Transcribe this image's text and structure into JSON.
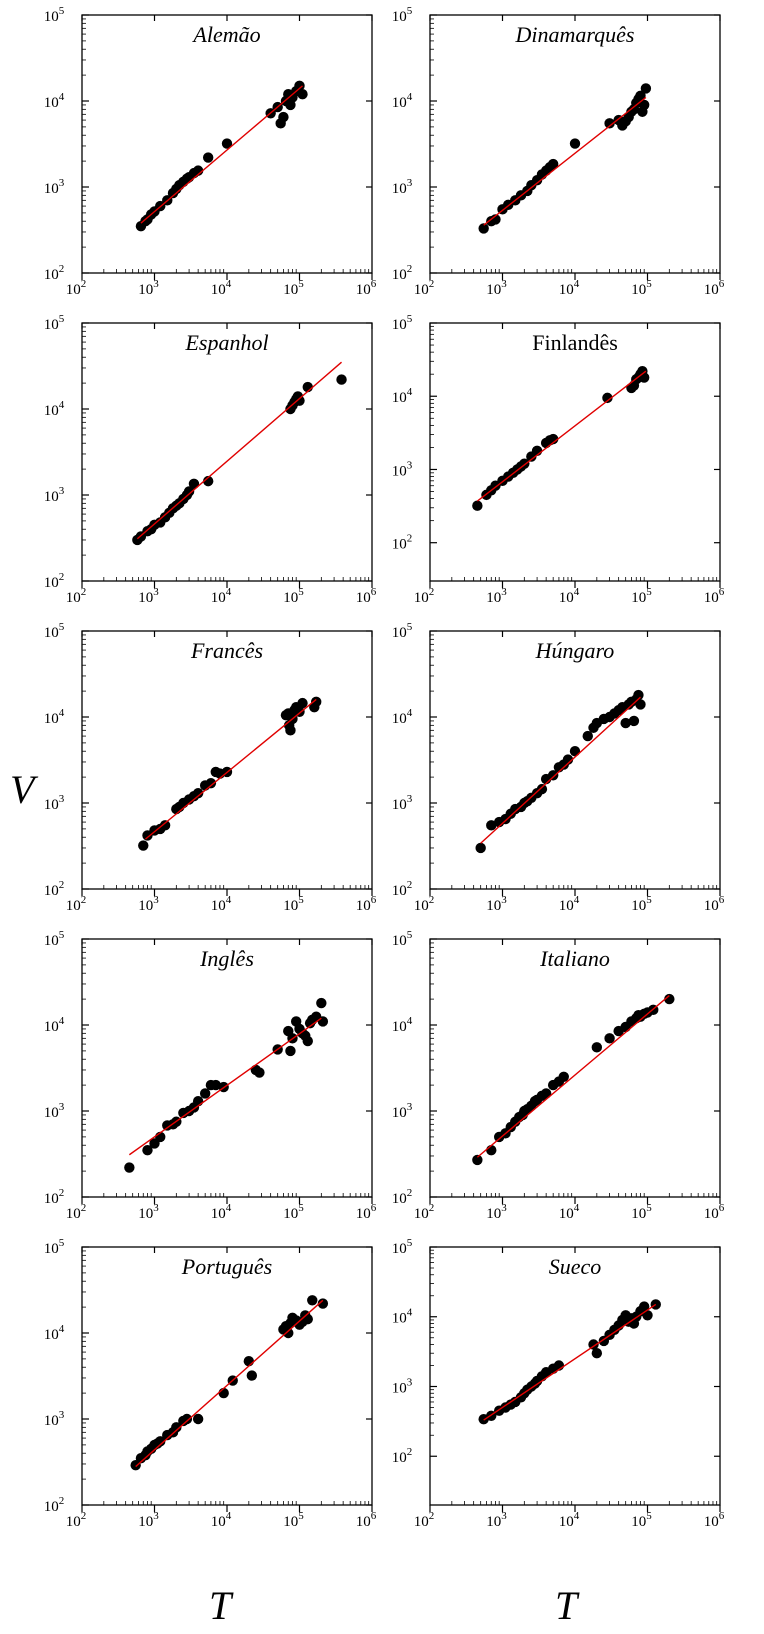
{
  "figure": {
    "ylabel": "V",
    "xlabel": "T",
    "line_color": "#e00000",
    "marker_color": "#000000"
  },
  "chart_data": [
    {
      "type": "scatter",
      "title": "Alemão",
      "title_italic": true,
      "log_scale": true,
      "grid": false,
      "xlim": [
        100,
        1000000
      ],
      "ylim": [
        100,
        100000
      ],
      "xticks": [
        "10^2",
        "10^3",
        "10^4",
        "10^5",
        "10^6"
      ],
      "yticks": [
        "10^2",
        "10^3",
        "10^4",
        "10^5"
      ],
      "fit_line": {
        "x": [
          650,
          110000
        ],
        "y": [
          380,
          15000
        ]
      },
      "points": {
        "x": [
          650,
          750,
          800,
          900,
          1000,
          1200,
          1500,
          1800,
          2000,
          2200,
          2500,
          2800,
          3000,
          3500,
          4000,
          5500,
          10000,
          40000,
          50000,
          55000,
          60000,
          65000,
          70000,
          75000,
          80000,
          90000,
          100000,
          110000
        ],
        "y": [
          350,
          400,
          420,
          480,
          520,
          600,
          700,
          850,
          950,
          1050,
          1150,
          1250,
          1300,
          1450,
          1550,
          2200,
          3200,
          7200,
          8500,
          5500,
          6500,
          10000,
          12000,
          9000,
          11000,
          13000,
          15000,
          12000
        ]
      }
    },
    {
      "type": "scatter",
      "title": "Dinamarquês",
      "title_italic": true,
      "log_scale": true,
      "grid": false,
      "xlim": [
        100,
        1000000
      ],
      "ylim": [
        100,
        100000
      ],
      "xticks": [
        "10^2",
        "10^3",
        "10^4",
        "10^5",
        "10^6"
      ],
      "yticks": [
        "10^2",
        "10^3",
        "10^4",
        "10^5"
      ],
      "fit_line": {
        "x": [
          550,
          95000
        ],
        "y": [
          360,
          11000
        ]
      },
      "points": {
        "x": [
          550,
          700,
          800,
          1000,
          1200,
          1500,
          1800,
          2200,
          2500,
          3000,
          3500,
          4000,
          4500,
          5000,
          10000,
          30000,
          40000,
          45000,
          50000,
          55000,
          60000,
          65000,
          70000,
          75000,
          80000,
          85000,
          90000,
          95000
        ],
        "y": [
          330,
          400,
          420,
          550,
          620,
          700,
          800,
          900,
          1050,
          1200,
          1400,
          1550,
          1700,
          1850,
          3200,
          5500,
          6000,
          5200,
          5800,
          6500,
          7500,
          8000,
          9500,
          10500,
          11500,
          7500,
          9000,
          14000
        ]
      }
    },
    {
      "type": "scatter",
      "title": "Espanhol",
      "title_italic": true,
      "log_scale": true,
      "grid": false,
      "xlim": [
        100,
        1000000
      ],
      "ylim": [
        100,
        100000
      ],
      "xticks": [
        "10^2",
        "10^3",
        "10^4",
        "10^5",
        "10^6"
      ],
      "yticks": [
        "10^2",
        "10^3",
        "10^4",
        "10^5"
      ],
      "fit_line": {
        "x": [
          580,
          380000
        ],
        "y": [
          310,
          35000
        ]
      },
      "points": {
        "x": [
          580,
          650,
          800,
          900,
          1000,
          1200,
          1400,
          1600,
          1800,
          2000,
          2200,
          2500,
          2800,
          3000,
          3500,
          5500,
          75000,
          80000,
          85000,
          90000,
          95000,
          100000,
          130000,
          380000
        ],
        "y": [
          300,
          330,
          380,
          400,
          450,
          480,
          550,
          620,
          700,
          750,
          800,
          900,
          1000,
          1100,
          1350,
          1450,
          10000,
          11000,
          12000,
          13000,
          14000,
          12500,
          18000,
          22000
        ]
      }
    },
    {
      "type": "scatter",
      "title": "Finlandês",
      "title_italic": false,
      "log_scale": true,
      "grid": false,
      "xlim": [
        100,
        1000000
      ],
      "ylim": [
        30,
        100000
      ],
      "xticks": [
        "10^2",
        "10^3",
        "10^4",
        "10^5",
        "10^6"
      ],
      "yticks": [
        "10^2",
        "10^3",
        "10^4",
        "10^5"
      ],
      "fit_line": {
        "x": [
          450,
          95000
        ],
        "y": [
          370,
          22000
        ]
      },
      "points": {
        "x": [
          450,
          600,
          700,
          800,
          1000,
          1200,
          1400,
          1600,
          1800,
          2000,
          2500,
          3000,
          4000,
          4500,
          5000,
          28000,
          60000,
          65000,
          70000,
          75000,
          80000,
          85000,
          90000
        ],
        "y": [
          320,
          450,
          520,
          600,
          700,
          800,
          900,
          1000,
          1100,
          1200,
          1500,
          1800,
          2300,
          2500,
          2600,
          9500,
          13000,
          14000,
          17000,
          18000,
          20000,
          22000,
          18000
        ]
      }
    },
    {
      "type": "scatter",
      "title": "Francês",
      "title_italic": true,
      "log_scale": true,
      "grid": false,
      "xlim": [
        100,
        1000000
      ],
      "ylim": [
        100,
        100000
      ],
      "xticks": [
        "10^2",
        "10^3",
        "10^4",
        "10^5",
        "10^6"
      ],
      "yticks": [
        "10^2",
        "10^3",
        "10^4",
        "10^5"
      ],
      "fit_line": {
        "x": [
          750,
          170000
        ],
        "y": [
          380,
          16000
        ]
      },
      "points": {
        "x": [
          700,
          800,
          1000,
          1200,
          1400,
          2000,
          2200,
          2500,
          3000,
          3500,
          4000,
          5000,
          6000,
          7000,
          8000,
          10000,
          65000,
          70000,
          72000,
          75000,
          80000,
          85000,
          90000,
          100000,
          110000,
          160000,
          170000
        ],
        "y": [
          320,
          420,
          480,
          500,
          550,
          850,
          900,
          1000,
          1100,
          1200,
          1300,
          1600,
          1700,
          2300,
          2200,
          2300,
          10500,
          11000,
          8000,
          7000,
          9500,
          12000,
          13000,
          11500,
          14500,
          13000,
          15000
        ]
      }
    },
    {
      "type": "scatter",
      "title": "Húngaro",
      "title_italic": true,
      "log_scale": true,
      "grid": false,
      "xlim": [
        100,
        1000000
      ],
      "ylim": [
        100,
        100000
      ],
      "xticks": [
        "10^2",
        "10^3",
        "10^4",
        "10^5",
        "10^6"
      ],
      "yticks": [
        "10^2",
        "10^3",
        "10^4",
        "10^5"
      ],
      "fit_line": {
        "x": [
          500,
          80000
        ],
        "y": [
          340,
          17000
        ]
      },
      "points": {
        "x": [
          500,
          700,
          900,
          1100,
          1300,
          1500,
          1800,
          2000,
          2200,
          2500,
          3000,
          3500,
          4000,
          5000,
          6000,
          7000,
          8000,
          10000,
          15000,
          18000,
          20000,
          25000,
          30000,
          35000,
          40000,
          45000,
          50000,
          55000,
          60000,
          65000,
          70000,
          75000,
          80000
        ],
        "y": [
          300,
          550,
          600,
          650,
          750,
          850,
          900,
          1000,
          1050,
          1150,
          1300,
          1450,
          1900,
          2100,
          2600,
          2800,
          3200,
          4000,
          6000,
          7500,
          8500,
          9500,
          10000,
          11000,
          12000,
          13000,
          8500,
          14000,
          15000,
          9000,
          16000,
          18000,
          14000
        ]
      }
    },
    {
      "type": "scatter",
      "title": "Inglês",
      "title_italic": true,
      "log_scale": true,
      "grid": false,
      "xlim": [
        100,
        1000000
      ],
      "ylim": [
        100,
        100000
      ],
      "xticks": [
        "10^2",
        "10^3",
        "10^4",
        "10^5",
        "10^6"
      ],
      "yticks": [
        "10^2",
        "10^3",
        "10^4",
        "10^5"
      ],
      "fit_line": {
        "x": [
          450,
          200000
        ],
        "y": [
          310,
          12000
        ]
      },
      "points": {
        "x": [
          450,
          800,
          1000,
          1200,
          1500,
          1800,
          2000,
          2500,
          3000,
          3500,
          4000,
          5000,
          6000,
          7000,
          9000,
          25000,
          28000,
          50000,
          70000,
          75000,
          80000,
          90000,
          100000,
          110000,
          120000,
          130000,
          140000,
          150000,
          170000,
          200000,
          210000
        ],
        "y": [
          220,
          350,
          420,
          500,
          680,
          700,
          750,
          950,
          1000,
          1100,
          1300,
          1600,
          2000,
          2000,
          1900,
          3000,
          2800,
          5200,
          8500,
          5000,
          7000,
          11000,
          9000,
          8000,
          7500,
          6500,
          10500,
          11500,
          12500,
          18000,
          11000
        ]
      }
    },
    {
      "type": "scatter",
      "title": "Italiano",
      "title_italic": true,
      "log_scale": true,
      "grid": false,
      "xlim": [
        100,
        1000000
      ],
      "ylim": [
        100,
        100000
      ],
      "xticks": [
        "10^2",
        "10^3",
        "10^4",
        "10^5",
        "10^6"
      ],
      "yticks": [
        "10^2",
        "10^3",
        "10^4",
        "10^5"
      ],
      "fit_line": {
        "x": [
          450,
          200000
        ],
        "y": [
          290,
          22000
        ]
      },
      "points": {
        "x": [
          450,
          700,
          900,
          1100,
          1300,
          1500,
          1700,
          1900,
          2000,
          2200,
          2500,
          2800,
          3000,
          3500,
          4000,
          5000,
          6000,
          7000,
          20000,
          30000,
          40000,
          50000,
          60000,
          70000,
          75000,
          80000,
          90000,
          100000,
          120000,
          200000
        ],
        "y": [
          270,
          350,
          500,
          550,
          650,
          750,
          850,
          900,
          1000,
          1050,
          1150,
          1300,
          1350,
          1500,
          1600,
          2000,
          2200,
          2500,
          5500,
          7000,
          8500,
          9500,
          11000,
          12000,
          13000,
          12500,
          13500,
          14000,
          15000,
          20000
        ]
      }
    },
    {
      "type": "scatter",
      "title": "Português",
      "title_italic": true,
      "log_scale": true,
      "grid": false,
      "xlim": [
        100,
        1000000
      ],
      "ylim": [
        100,
        100000
      ],
      "xticks": [
        "10^2",
        "10^3",
        "10^4",
        "10^5",
        "10^6"
      ],
      "yticks": [
        "10^2",
        "10^3",
        "10^4",
        "10^5"
      ],
      "fit_line": {
        "x": [
          550,
          210000
        ],
        "y": [
          280,
          24000
        ]
      },
      "points": {
        "x": [
          550,
          650,
          750,
          800,
          900,
          1000,
          1100,
          1200,
          1500,
          1800,
          2000,
          2500,
          2800,
          4000,
          9000,
          12000,
          20000,
          22000,
          60000,
          65000,
          70000,
          75000,
          80000,
          90000,
          100000,
          110000,
          120000,
          130000,
          150000,
          210000
        ],
        "y": [
          290,
          350,
          380,
          420,
          450,
          500,
          520,
          550,
          650,
          700,
          800,
          950,
          1000,
          1000,
          2000,
          2800,
          4700,
          3200,
          11000,
          12000,
          10000,
          13000,
          15000,
          14000,
          12500,
          13500,
          16000,
          14500,
          24000,
          22000
        ]
      }
    },
    {
      "type": "scatter",
      "title": "Sueco",
      "title_italic": true,
      "log_scale": true,
      "grid": false,
      "xlim": [
        100,
        1000000
      ],
      "ylim": [
        20,
        100000
      ],
      "xticks": [
        "10^2",
        "10^3",
        "10^4",
        "10^5",
        "10^6"
      ],
      "yticks": [
        "10^2",
        "10^3",
        "10^4",
        "10^5"
      ],
      "fit_line": {
        "x": [
          550,
          130000
        ],
        "y": [
          330,
          15000
        ]
      },
      "points": {
        "x": [
          550,
          700,
          900,
          1100,
          1300,
          1500,
          1800,
          2000,
          2200,
          2500,
          2800,
          3000,
          3500,
          4000,
          5000,
          6000,
          18000,
          20000,
          25000,
          30000,
          35000,
          40000,
          45000,
          50000,
          55000,
          60000,
          65000,
          70000,
          80000,
          90000,
          100000,
          130000
        ],
        "y": [
          340,
          380,
          450,
          500,
          550,
          600,
          700,
          800,
          900,
          1000,
          1100,
          1200,
          1400,
          1600,
          1800,
          2000,
          4000,
          3000,
          4500,
          5500,
          6500,
          7500,
          9000,
          10500,
          8500,
          9500,
          8000,
          10000,
          12000,
          14000,
          10500,
          15000
        ]
      }
    }
  ]
}
